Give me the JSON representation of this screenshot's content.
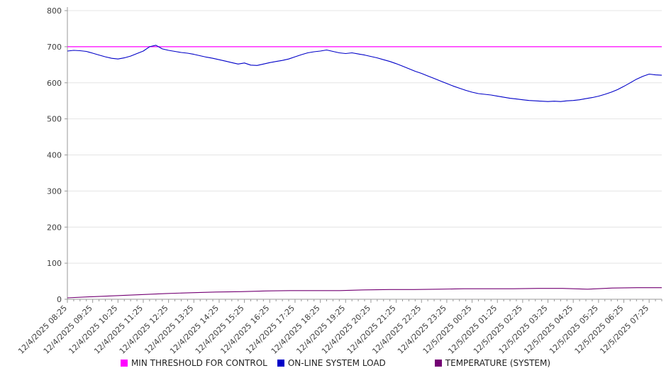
{
  "chart_data": {
    "type": "line",
    "title": "",
    "xlabel": "",
    "ylabel": "",
    "grid": "horizontal",
    "legend_position": "bottom",
    "ylim": [
      0,
      800
    ],
    "yticks": [
      0,
      100,
      200,
      300,
      400,
      500,
      600,
      700,
      800
    ],
    "x_span_hours": 23.5,
    "x_labels": [
      "12/4/2025 08:25",
      "12/4/2025 09:25",
      "12/4/2025 10:25",
      "12/4/2025 11:25",
      "12/4/2025 12:25",
      "12/4/2025 13:25",
      "12/4/2025 14:25",
      "12/4/2025 15:25",
      "12/4/2025 16:25",
      "12/4/2025 17:25",
      "12/4/2025 18:25",
      "12/4/2025 19:25",
      "12/4/2025 20:25",
      "12/4/2025 21:25",
      "12/4/2025 22:25",
      "12/4/2025 23:25",
      "12/5/2025 00:25",
      "12/5/2025 01:25",
      "12/5/2025 02:25",
      "12/5/2025 03:25",
      "12/5/2025 04:25",
      "12/5/2025 05:25",
      "12/5/2025 06:25",
      "12/5/2025 07:25"
    ],
    "series": [
      {
        "name": "MIN THRESHOLD FOR CONTROL",
        "color": "#ff00ff",
        "stroke_width": 1.3,
        "values": [
          700,
          700
        ]
      },
      {
        "name": "ON-LINE SYSTEM LOAD",
        "color": "#0000c8",
        "stroke_width": 1.1,
        "values": [
          688,
          690,
          689,
          687,
          682,
          677,
          672,
          668,
          666,
          669,
          674,
          681,
          688,
          700,
          704,
          694,
          690,
          687,
          684,
          682,
          679,
          675,
          671,
          668,
          664,
          660,
          656,
          652,
          655,
          649,
          648,
          652,
          656,
          659,
          662,
          666,
          672,
          678,
          683,
          686,
          688,
          691,
          687,
          683,
          681,
          683,
          680,
          677,
          673,
          669,
          664,
          659,
          653,
          646,
          639,
          632,
          626,
          619,
          612,
          605,
          598,
          591,
          585,
          579,
          574,
          570,
          568,
          566,
          563,
          560,
          557,
          555,
          553,
          551,
          550,
          549,
          548,
          549,
          548,
          550,
          551,
          553,
          556,
          559,
          563,
          568,
          574,
          581,
          590,
          600,
          610,
          618,
          624,
          622,
          621
        ]
      },
      {
        "name": "TEMPERATURE (SYSTEM)",
        "color": "#730073",
        "stroke_width": 1.1,
        "values": [
          4,
          7,
          10,
          13,
          16,
          18,
          20,
          21,
          23,
          24,
          24,
          24,
          26,
          27,
          27,
          28,
          29,
          29,
          29,
          30,
          30,
          28,
          31,
          32,
          32
        ]
      }
    ]
  }
}
